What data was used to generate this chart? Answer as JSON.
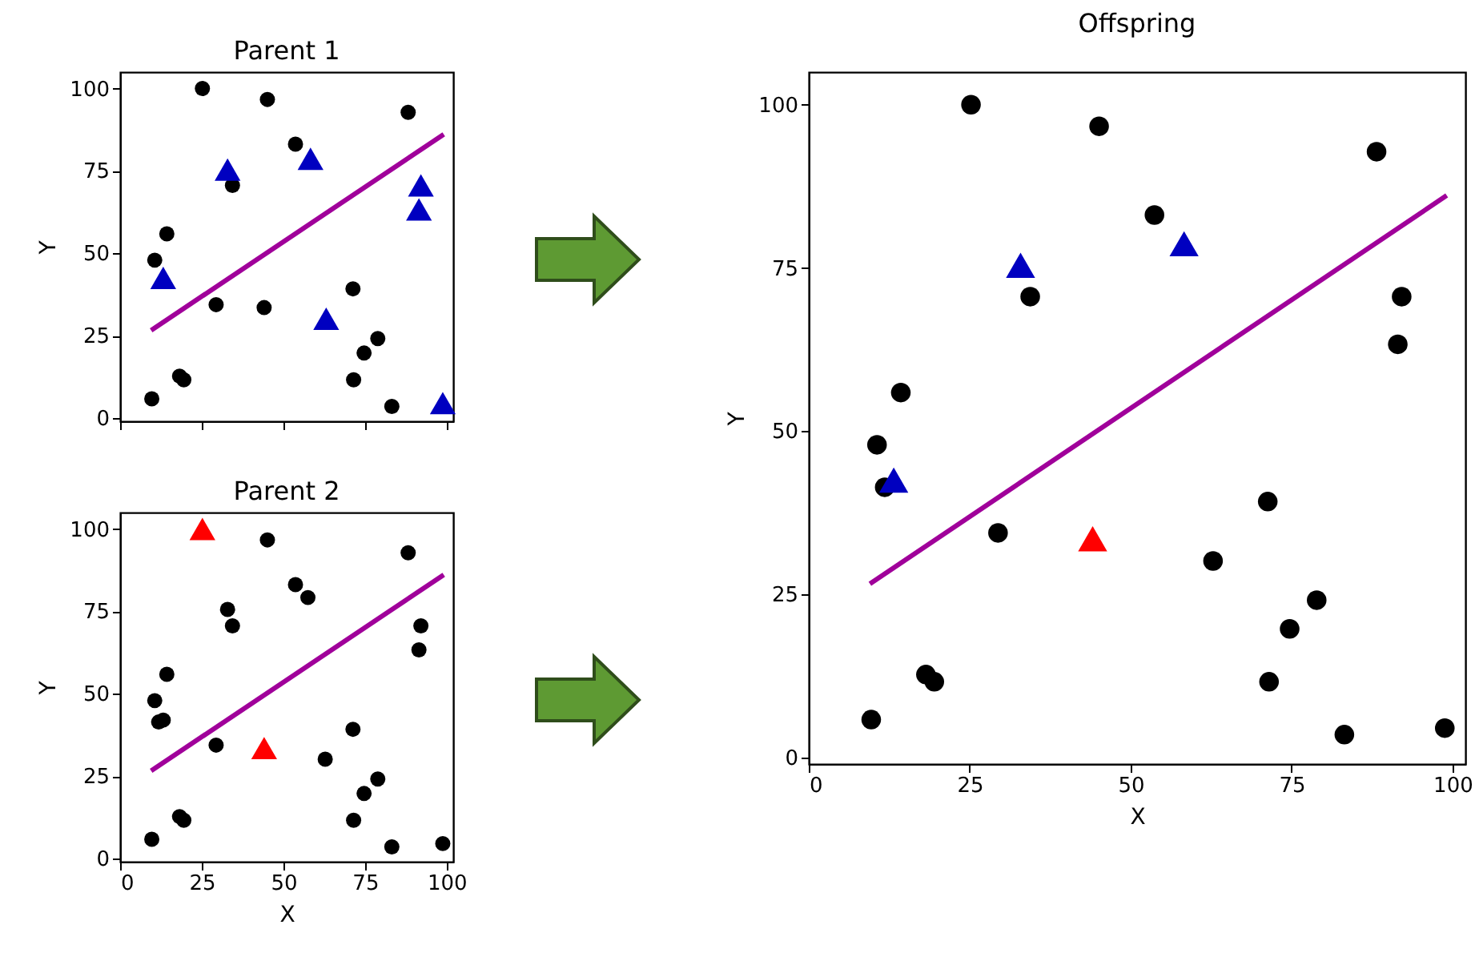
{
  "chart_data": [
    {
      "type": "scatter",
      "title": "Parent 1",
      "ylabel": "Y",
      "xlim": [
        0,
        102
      ],
      "ylim": [
        -1,
        105
      ],
      "xticks": [
        0,
        25,
        50,
        75,
        100
      ],
      "yticks": [
        0,
        25,
        50,
        75,
        100
      ],
      "tick_labels": "y",
      "series": [
        {
          "color": "#000000",
          "marker": "circle",
          "x": [
            25.2,
            45.1,
            88.2,
            53.7,
            34.4,
            14.3,
            10.6,
            29.4,
            44.1,
            71.3,
            78.9,
            74.7,
            18.2,
            19.5,
            71.5,
            9.7,
            83.2
          ],
          "values": [
            100,
            96.7,
            92.8,
            83.1,
            70.6,
            55.9,
            47.9,
            34.4,
            33.5,
            39.2,
            24.1,
            19.7,
            12.7,
            11.6,
            11.6,
            5.8,
            3.5
          ]
        },
        {
          "color": "#0000c0",
          "marker": "triangle",
          "x": [
            13.2,
            32.9,
            58.3,
            63.1,
            92.1,
            91.5,
            98.8
          ],
          "values": [
            42.5,
            75.4,
            78.7,
            30.1,
            70.6,
            63.3,
            4.5
          ]
        },
        {
          "type": "line",
          "color": "#a0009a",
          "marker": "none",
          "x": [
            9.5,
            99.1
          ],
          "values": [
            26.6,
            86.1
          ]
        }
      ]
    },
    {
      "type": "scatter",
      "title": "Parent 2",
      "xlabel": "X",
      "ylabel": "Y",
      "xlim": [
        0,
        102
      ],
      "ylim": [
        -1,
        105
      ],
      "xticks": [
        0,
        25,
        50,
        75,
        100
      ],
      "yticks": [
        0,
        25,
        50,
        75,
        100
      ],
      "series": [
        {
          "color": "#000000",
          "marker": "circle",
          "x": [
            45.1,
            88.2,
            53.7,
            57.5,
            32.9,
            34.4,
            92.1,
            91.5,
            14.3,
            10.6,
            11.8,
            13.2,
            29.4,
            71.3,
            62.8,
            78.9,
            74.7,
            18.2,
            19.5,
            71.5,
            9.7,
            83.2,
            98.8
          ],
          "values": [
            96.7,
            92.8,
            83.1,
            79.2,
            75.6,
            70.6,
            70.6,
            63.3,
            55.9,
            47.9,
            41.4,
            42.0,
            34.4,
            39.2,
            30.1,
            24.1,
            19.7,
            12.7,
            11.6,
            11.6,
            5.8,
            3.5,
            4.5
          ]
        },
        {
          "color": "#ff0000",
          "marker": "triangle",
          "x": [
            25.2,
            44.1
          ],
          "values": [
            100,
            33.5
          ]
        },
        {
          "type": "line",
          "color": "#a0009a",
          "marker": "none",
          "x": [
            9.5,
            99.1
          ],
          "values": [
            26.6,
            86.1
          ]
        }
      ]
    },
    {
      "type": "scatter",
      "title": "Offspring",
      "xlabel": "X",
      "ylabel": "Y",
      "xlim": [
        0,
        102
      ],
      "ylim": [
        -1,
        105
      ],
      "xticks": [
        0,
        25,
        50,
        75,
        100
      ],
      "yticks": [
        0,
        25,
        50,
        75,
        100
      ],
      "series": [
        {
          "color": "#000000",
          "marker": "circle",
          "x": [
            25.2,
            45.1,
            88.2,
            53.7,
            34.4,
            92.1,
            91.5,
            14.3,
            10.6,
            11.8,
            29.4,
            71.3,
            62.8,
            78.9,
            74.7,
            18.2,
            19.5,
            71.5,
            9.7,
            83.2,
            98.8
          ],
          "values": [
            100,
            96.7,
            92.8,
            83.1,
            70.6,
            70.6,
            63.3,
            55.9,
            47.9,
            41.4,
            34.4,
            39.2,
            30.1,
            24.1,
            19.7,
            12.7,
            11.6,
            11.6,
            5.8,
            3.5,
            4.5
          ]
        },
        {
          "color": "#0000c0",
          "marker": "triangle",
          "x": [
            13.2,
            32.9,
            58.3
          ],
          "values": [
            42.5,
            75.4,
            78.7
          ]
        },
        {
          "color": "#ff0000",
          "marker": "triangle",
          "x": [
            44.1
          ],
          "values": [
            33.5
          ]
        },
        {
          "type": "line",
          "color": "#a0009a",
          "marker": "none",
          "x": [
            9.5,
            99.1
          ],
          "values": [
            26.6,
            86.1
          ]
        }
      ]
    }
  ]
}
